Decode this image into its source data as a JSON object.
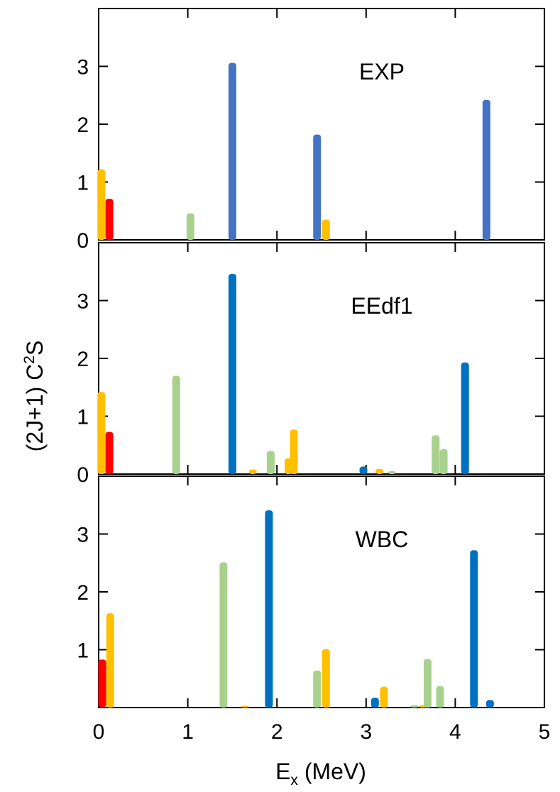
{
  "chart_data": {
    "type": "bar",
    "xlabel": "E",
    "xlabel_sub": "x",
    "xlabel_unit": " (MeV)",
    "ylabel": "(2J+1) C",
    "ylabel_sup": "2",
    "ylabel_tail": "S",
    "xlim": [
      0,
      5
    ],
    "ylim": [
      0,
      4
    ],
    "x_ticks": [
      0,
      1,
      2,
      3,
      4,
      5
    ],
    "y_ticks": [
      1,
      2,
      3
    ],
    "series_colors": {
      "red": "#ff0000",
      "orange": "#ffc000",
      "green": "#a9d18e",
      "blue_exp": "#4472c4",
      "blue": "#0070c0"
    },
    "panels": [
      {
        "label": "EXP",
        "zero_tick_label": "0",
        "bars": [
          {
            "x": 0.03,
            "value": 1.22,
            "color": "orange"
          },
          {
            "x": 0.12,
            "value": 0.71,
            "color": "red"
          },
          {
            "x": 1.03,
            "value": 0.46,
            "color": "green"
          },
          {
            "x": 1.5,
            "value": 3.06,
            "color": "blue_exp"
          },
          {
            "x": 2.45,
            "value": 1.82,
            "color": "blue_exp"
          },
          {
            "x": 2.55,
            "value": 0.35,
            "color": "orange"
          },
          {
            "x": 4.35,
            "value": 2.42,
            "color": "blue_exp"
          }
        ]
      },
      {
        "label": "EEdf1",
        "zero_tick_label": "0",
        "bars": [
          {
            "x": 0.03,
            "value": 1.42,
            "color": "orange"
          },
          {
            "x": 0.12,
            "value": 0.73,
            "color": "red"
          },
          {
            "x": 0.87,
            "value": 1.7,
            "color": "green"
          },
          {
            "x": 1.5,
            "value": 3.46,
            "color": "blue"
          },
          {
            "x": 1.73,
            "value": 0.08,
            "color": "orange"
          },
          {
            "x": 1.93,
            "value": 0.4,
            "color": "green"
          },
          {
            "x": 2.13,
            "value": 0.27,
            "color": "orange"
          },
          {
            "x": 2.19,
            "value": 0.77,
            "color": "orange"
          },
          {
            "x": 2.97,
            "value": 0.13,
            "color": "blue"
          },
          {
            "x": 3.15,
            "value": 0.09,
            "color": "orange"
          },
          {
            "x": 3.29,
            "value": 0.05,
            "color": "green"
          },
          {
            "x": 3.78,
            "value": 0.67,
            "color": "green"
          },
          {
            "x": 3.87,
            "value": 0.43,
            "color": "green"
          },
          {
            "x": 4.11,
            "value": 1.93,
            "color": "blue"
          }
        ]
      },
      {
        "label": "WBC",
        "zero_tick_label": "",
        "bars": [
          {
            "x": 0.04,
            "value": 0.83,
            "color": "red"
          },
          {
            "x": 0.13,
            "value": 1.63,
            "color": "orange"
          },
          {
            "x": 1.4,
            "value": 2.51,
            "color": "green"
          },
          {
            "x": 1.64,
            "value": 0.03,
            "color": "orange"
          },
          {
            "x": 1.91,
            "value": 3.41,
            "color": "blue"
          },
          {
            "x": 2.45,
            "value": 0.64,
            "color": "green"
          },
          {
            "x": 2.55,
            "value": 1.01,
            "color": "orange"
          },
          {
            "x": 3.1,
            "value": 0.17,
            "color": "blue"
          },
          {
            "x": 3.2,
            "value": 0.36,
            "color": "orange"
          },
          {
            "x": 3.54,
            "value": 0.04,
            "color": "green"
          },
          {
            "x": 3.64,
            "value": 0.04,
            "color": "orange"
          },
          {
            "x": 3.69,
            "value": 0.84,
            "color": "green"
          },
          {
            "x": 3.83,
            "value": 0.37,
            "color": "green"
          },
          {
            "x": 4.21,
            "value": 2.72,
            "color": "blue"
          },
          {
            "x": 4.39,
            "value": 0.13,
            "color": "blue"
          }
        ]
      }
    ]
  }
}
